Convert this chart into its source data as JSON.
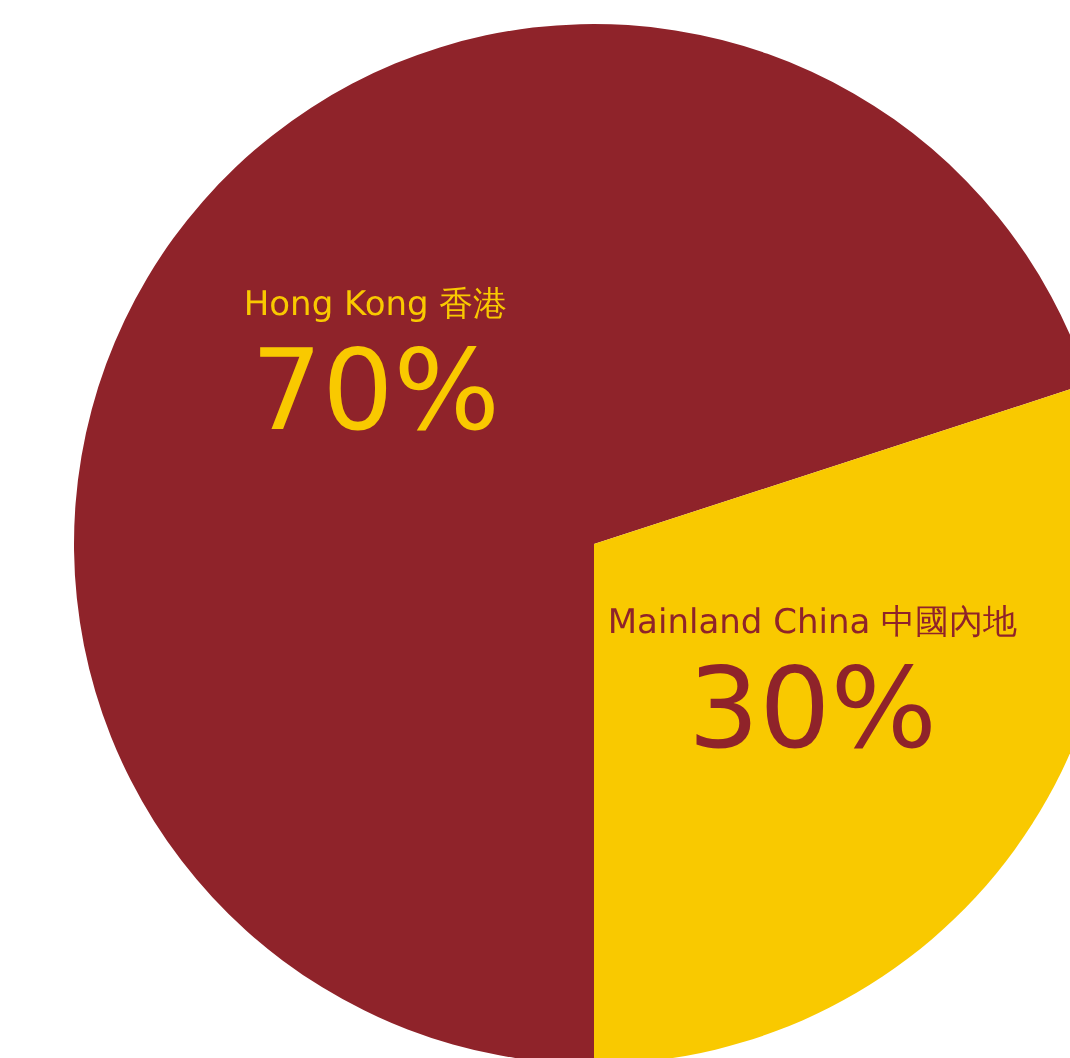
{
  "chart_data": {
    "type": "pie",
    "categories": [
      "Hong Kong 香港",
      "Mainland China 中國內地"
    ],
    "values": [
      70,
      30
    ],
    "colors": [
      "#8f232a",
      "#f9c900"
    ],
    "value_labels": [
      "70%",
      "30%"
    ]
  }
}
